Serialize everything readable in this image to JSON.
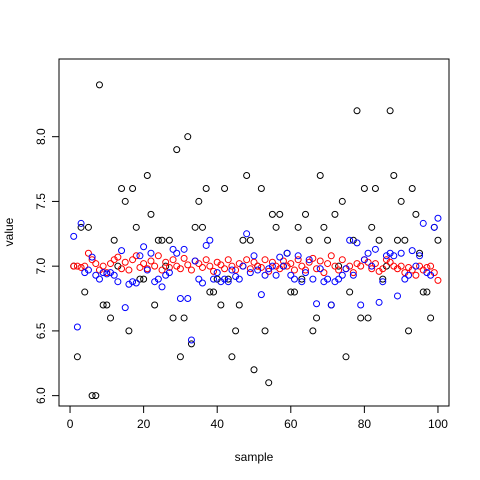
{
  "chart_data": {
    "type": "scatter",
    "title": "",
    "xlabel": "sample",
    "ylabel": "value",
    "xlim": [
      -3,
      103
    ],
    "ylim": [
      5.92,
      8.6
    ],
    "x_ticks": [
      0,
      20,
      40,
      60,
      80,
      100
    ],
    "x_tick_labels": [
      "0",
      "20",
      "40",
      "60",
      "80",
      "100"
    ],
    "y_ticks": [
      6.0,
      6.5,
      7.0,
      7.5,
      8.0
    ],
    "y_tick_labels": [
      "6.0",
      "6.5",
      "7.0",
      "7.5",
      "8.0"
    ],
    "grid": false,
    "legend": "none",
    "marker": "open-circle",
    "series": [
      {
        "color": "#000000",
        "x": [
          1,
          2,
          3,
          4,
          5,
          6,
          7,
          8,
          9,
          10,
          11,
          12,
          13,
          14,
          15,
          16,
          17,
          18,
          19,
          20,
          21,
          22,
          23,
          24,
          25,
          26,
          27,
          28,
          29,
          30,
          31,
          32,
          33,
          34,
          35,
          36,
          37,
          38,
          39,
          40,
          41,
          42,
          43,
          44,
          45,
          46,
          47,
          48,
          49,
          50,
          51,
          52,
          53,
          54,
          55,
          56,
          57,
          58,
          59,
          60,
          61,
          62,
          63,
          64,
          65,
          66,
          67,
          68,
          69,
          70,
          71,
          72,
          73,
          74,
          75,
          76,
          77,
          78,
          79,
          80,
          81,
          82,
          83,
          84,
          85,
          86,
          87,
          88,
          89,
          90,
          91,
          92,
          93,
          94,
          95,
          96,
          97,
          98,
          99,
          100
        ],
        "y": [
          7.0,
          6.3,
          7.3,
          6.8,
          7.3,
          6.0,
          6.0,
          8.4,
          6.7,
          6.7,
          6.6,
          7.2,
          7.0,
          7.6,
          7.5,
          6.5,
          7.6,
          7.3,
          6.9,
          6.9,
          7.7,
          7.4,
          6.7,
          7.2,
          7.2,
          7.0,
          7.2,
          6.6,
          7.9,
          6.3,
          6.6,
          8.0,
          6.4,
          7.3,
          7.5,
          7.3,
          7.6,
          6.8,
          6.8,
          6.9,
          6.7,
          7.6,
          6.9,
          6.3,
          6.5,
          6.7,
          7.2,
          7.7,
          7.2,
          6.2,
          7.0,
          7.6,
          6.5,
          6.1,
          7.4,
          7.3,
          7.4,
          7.0,
          7.1,
          6.8,
          6.8,
          7.3,
          6.9,
          7.4,
          7.2,
          6.5,
          6.6,
          7.7,
          7.3,
          7.2,
          6.7,
          7.4,
          7.0,
          7.5,
          6.3,
          6.8,
          7.2,
          8.2,
          6.6,
          7.6,
          6.6,
          7.3,
          7.6,
          7.2,
          6.9,
          7.0,
          8.2,
          7.7,
          7.2,
          7.5,
          7.2,
          6.5,
          7.6,
          7.4,
          7.1,
          6.8,
          6.8,
          6.6,
          7.3,
          7.2
        ]
      },
      {
        "color": "#ff0000",
        "x": [
          1,
          2,
          3,
          4,
          5,
          6,
          7,
          8,
          9,
          10,
          11,
          12,
          13,
          14,
          15,
          16,
          17,
          18,
          19,
          20,
          21,
          22,
          23,
          24,
          25,
          26,
          27,
          28,
          29,
          30,
          31,
          32,
          33,
          34,
          35,
          36,
          37,
          38,
          39,
          40,
          41,
          42,
          43,
          44,
          45,
          46,
          47,
          48,
          49,
          50,
          51,
          52,
          53,
          54,
          55,
          56,
          57,
          58,
          59,
          60,
          61,
          62,
          63,
          64,
          65,
          66,
          67,
          68,
          69,
          70,
          71,
          72,
          73,
          74,
          75,
          76,
          77,
          78,
          79,
          80,
          81,
          82,
          83,
          84,
          85,
          86,
          87,
          88,
          89,
          90,
          91,
          92,
          93,
          94,
          95,
          96,
          97,
          98,
          99,
          100
        ],
        "y": [
          7.0,
          7.0,
          6.99,
          7.0,
          7.1,
          7.05,
          7.02,
          6.97,
          7.0,
          6.95,
          7.02,
          7.05,
          7.07,
          6.98,
          7.03,
          6.97,
          7.05,
          7.08,
          6.99,
          7.02,
          6.98,
          7.04,
          7.0,
          7.08,
          6.97,
          7.03,
          6.99,
          7.05,
          7.0,
          6.98,
          7.06,
          7.01,
          6.97,
          7.04,
          7.02,
          6.99,
          7.05,
          7.0,
          6.96,
          7.03,
          7.01,
          6.98,
          7.05,
          7.0,
          6.97,
          7.02,
          7.0,
          7.05,
          6.98,
          7.03,
          7.0,
          6.99,
          7.05,
          6.96,
          7.03,
          7.0,
          6.98,
          7.04,
          7.0,
          7.02,
          6.97,
          7.05,
          7.0,
          6.97,
          7.03,
          7.06,
          6.98,
          7.04,
          6.95,
          7.02,
          7.08,
          7.0,
          6.97,
          7.05,
          6.98,
          7.0,
          6.95,
          7.02,
          7.0,
          7.05,
          7.03,
          6.98,
          7.02,
          6.96,
          6.98,
          7.05,
          7.03,
          7.0,
          6.98,
          7.0,
          6.95,
          6.99,
          6.97,
          6.93,
          7.0,
          6.97,
          6.99,
          7.0,
          6.95,
          6.89
        ]
      },
      {
        "color": "#0000ff",
        "x": [
          1,
          2,
          3,
          4,
          5,
          6,
          7,
          8,
          9,
          10,
          11,
          12,
          13,
          14,
          15,
          16,
          17,
          18,
          19,
          20,
          21,
          22,
          23,
          24,
          25,
          26,
          27,
          28,
          29,
          30,
          31,
          32,
          33,
          34,
          35,
          36,
          37,
          38,
          39,
          40,
          41,
          42,
          43,
          44,
          45,
          46,
          47,
          48,
          49,
          50,
          51,
          52,
          53,
          54,
          55,
          56,
          57,
          58,
          59,
          60,
          61,
          62,
          63,
          64,
          65,
          66,
          67,
          68,
          69,
          70,
          71,
          72,
          73,
          74,
          75,
          76,
          77,
          78,
          79,
          80,
          81,
          82,
          83,
          84,
          85,
          86,
          87,
          88,
          89,
          90,
          91,
          92,
          93,
          94,
          95,
          96,
          97,
          98,
          99,
          100
        ],
        "y": [
          7.23,
          6.53,
          7.33,
          6.95,
          6.97,
          7.07,
          6.93,
          6.9,
          6.95,
          6.94,
          6.95,
          6.93,
          6.88,
          7.12,
          6.68,
          6.86,
          6.88,
          6.87,
          7.08,
          7.15,
          6.97,
          7.1,
          6.88,
          6.9,
          6.84,
          6.93,
          6.95,
          7.13,
          7.1,
          6.75,
          7.13,
          6.75,
          6.43,
          7.04,
          6.9,
          6.87,
          7.16,
          7.2,
          6.9,
          6.95,
          6.88,
          6.9,
          6.88,
          6.97,
          6.92,
          6.9,
          7.0,
          7.25,
          6.95,
          7.08,
          6.97,
          6.78,
          6.93,
          6.98,
          7.0,
          6.93,
          7.07,
          7.0,
          7.1,
          6.93,
          6.9,
          7.08,
          6.88,
          6.95,
          7.05,
          6.9,
          6.71,
          6.98,
          6.88,
          6.9,
          6.7,
          6.88,
          6.9,
          6.93,
          6.98,
          7.2,
          6.93,
          7.18,
          6.7,
          7.05,
          7.1,
          7.0,
          7.13,
          6.72,
          6.88,
          7.08,
          7.1,
          7.08,
          6.77,
          7.1,
          6.9,
          6.93,
          7.12,
          7.0,
          7.08,
          7.33,
          6.95,
          6.93,
          7.3,
          7.37
        ]
      }
    ]
  }
}
